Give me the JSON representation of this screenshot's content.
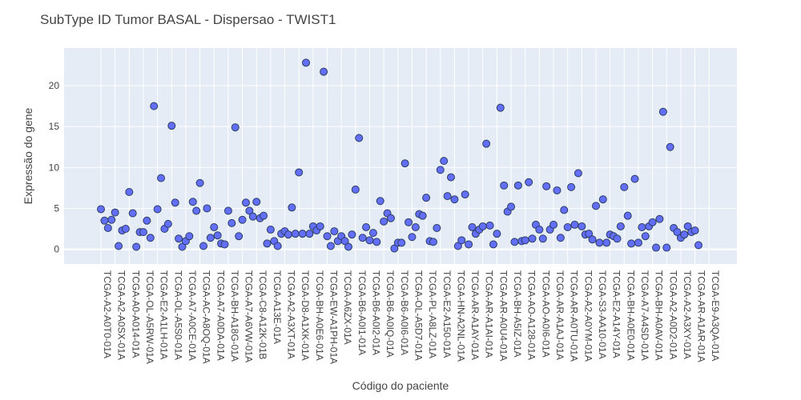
{
  "chart_data": {
    "type": "scatter",
    "title": "SubType ID Tumor BASAL - Dispersao - TWIST1",
    "xlabel": "Código do paciente",
    "ylabel": "Expressão do gene",
    "ylim": [
      -1.8,
      24.6
    ],
    "y_ticks": [
      0,
      5,
      10,
      15,
      20
    ],
    "grid": true,
    "legend": "none",
    "x_tick_labels": [
      "TCGA-A2-A0T0-01A",
      "TCGA-A2-A0SX-01A",
      "TCGA-A0-A014-01A",
      "TCGA-OL-A5RW-01A",
      "TCGA-E2-A1LH-01A",
      "TCGA-OL-A5S0-01A",
      "TCGA-A7-A0CE-01A",
      "TCGA-AC-A8OQ-01A",
      "TCGA-A7-A0DA-01A",
      "TCGA-BH-A18G-01A",
      "TCGA-A7-A6VW-01A",
      "TCGA-C8-A12K-01B",
      "TCGA-A13E-01A",
      "TCGA-A2-A3XT-01A",
      "TCGA-D8-A1XK-01A",
      "TCGA-BH-A0E6-01A",
      "TCGA-EW-A1PH-01A",
      "TCGA-A6ZX-01A",
      "TCGA-B6-A0I1-01A",
      "TCGA-B6-A0I2-01A",
      "TCGA-B6-A0IQ-01A",
      "TCGA-B6-A0I6-01A",
      "TCGA-OL-A5D7-01A",
      "TCGA-PL-A8LZ-01A",
      "TCGA-E2-A150-01A",
      "TCGA-HN-A2NL-01A",
      "TCGA-AR-A1AY-01A",
      "TCGA-AR-A1AI-01A",
      "TCGA-AR-A0U4-01A",
      "TCGA-BH-A5IZ-01A",
      "TCGA-AO-A128-01A",
      "TCGA-AO-A0I6-01A",
      "TCGA-AR-A1AJ-01A",
      "TCGA-AR-A0TU-01A",
      "TCGA-A2-A0YM-01A",
      "TCGA-S3-AA10-01A",
      "TCGA-E2-A14Y-01A",
      "TCGA-BH-A0E0-01A",
      "TCGA-A7-A4SD-01A",
      "TCGA-BH-A0AV-01A",
      "TCGA-A2-A0D2-01A",
      "TCGA-A2-A3XY-01A",
      "TCGA-AR-A1AR-01A",
      "TCGA-E9-A3QA-01A"
    ],
    "series": [
      {
        "color": "#636efa",
        "y": [
          4.9,
          3.5,
          2.6,
          3.6,
          4.5,
          0.4,
          2.3,
          2.5,
          7.0,
          4.4,
          0.3,
          2.1,
          2.1,
          3.5,
          1.4,
          17.5,
          4.9,
          8.7,
          2.5,
          3.1,
          15.1,
          5.7,
          1.3,
          0.3,
          1.0,
          1.6,
          5.8,
          4.7,
          8.1,
          0.4,
          5.0,
          1.4,
          2.7,
          1.7,
          0.7,
          0.6,
          4.7,
          3.2,
          14.9,
          1.6,
          3.6,
          5.7,
          4.7,
          4.0,
          5.8,
          3.8,
          4.1,
          0.7,
          2.4,
          1.0,
          0.4,
          1.9,
          2.2,
          1.8,
          5.1,
          1.9,
          9.4,
          1.9,
          22.8,
          1.9,
          2.8,
          2.3,
          2.8,
          21.7,
          1.6,
          0.4,
          2.2,
          1.0,
          1.6,
          1.0,
          0.3,
          1.8,
          7.3,
          13.6,
          1.4,
          2.7,
          1.1,
          2.0,
          0.9,
          5.9,
          3.4,
          4.4,
          3.8,
          0.1,
          0.8,
          0.8,
          10.5,
          3.3,
          1.5,
          2.7,
          4.3,
          4.1,
          6.3,
          1.0,
          0.9,
          2.6,
          9.7,
          10.8,
          6.5,
          8.8,
          6.1,
          0.4,
          1.1,
          6.7,
          0.6,
          2.7,
          1.9,
          2.4,
          2.8,
          12.9,
          2.9,
          0.6,
          1.9,
          17.3,
          7.8,
          4.6,
          5.2,
          0.9,
          7.8,
          1.0,
          1.1,
          8.2,
          1.3,
          3.0,
          2.4,
          1.3,
          7.7,
          2.4,
          3.0,
          7.2,
          1.4,
          4.8,
          2.7,
          7.6,
          3.0,
          9.3,
          2.8,
          1.8,
          1.9,
          1.2,
          5.3,
          0.8,
          6.1,
          0.8,
          1.8,
          1.6,
          1.3,
          2.8,
          7.6,
          4.1,
          0.7,
          8.6,
          0.8,
          2.7,
          1.6,
          2.8,
          3.3,
          0.2,
          3.7,
          16.8,
          0.2,
          12.5,
          2.6,
          2.1,
          1.4,
          1.8,
          2.8,
          2.1,
          2.3,
          0.5
        ]
      }
    ]
  }
}
